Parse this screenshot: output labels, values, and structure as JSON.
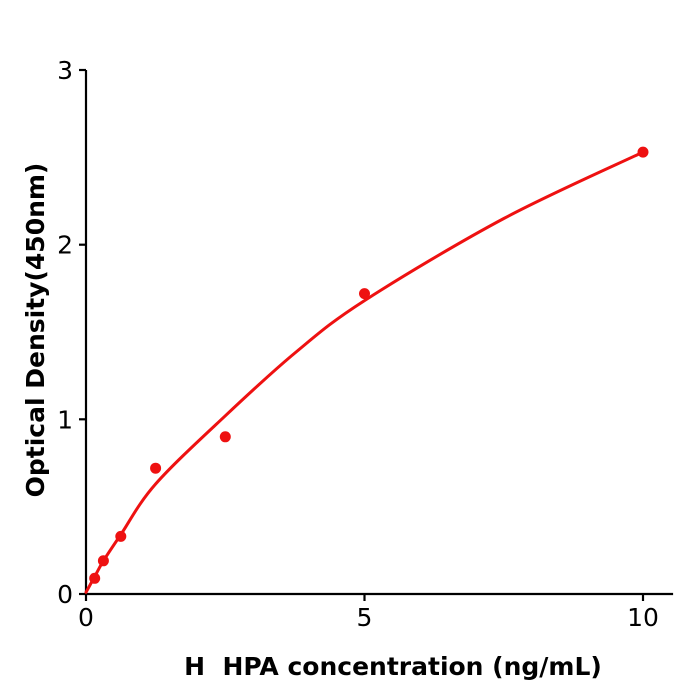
{
  "chart_data": {
    "type": "scatter",
    "title": "",
    "xlabel": "H  HPA concentration (ng/mL)",
    "ylabel": "Optical Density(450nm)",
    "xlim": [
      0,
      10.54
    ],
    "ylim": [
      0,
      3
    ],
    "xticks": [
      "0",
      "5",
      "10"
    ],
    "xtick_values": [
      0,
      5,
      10
    ],
    "yticks": [
      "0",
      "1",
      "2",
      "3"
    ],
    "ytick_values": [
      0,
      1,
      2,
      3
    ],
    "grid": false,
    "legend_position": "none",
    "series": [
      {
        "name": "standard-data-points",
        "type": "scatter",
        "color": "#ee1111",
        "x": [
          0.156,
          0.312,
          0.625,
          1.25,
          2.5,
          5,
          10
        ],
        "y": [
          0.09,
          0.19,
          0.33,
          0.72,
          0.9,
          1.72,
          2.53
        ]
      },
      {
        "name": "fitted-curve",
        "type": "line",
        "color": "#ee1111",
        "x": [
          0,
          0.156,
          0.312,
          0.625,
          1.25,
          2.5,
          3.75,
          5,
          7.5,
          10
        ],
        "y": [
          0.01,
          0.1,
          0.19,
          0.34,
          0.63,
          1.02,
          1.38,
          1.68,
          2.15,
          2.53
        ]
      }
    ],
    "colors": {
      "accent": "#ee1111",
      "axis": "#000000",
      "background": "#ffffff"
    }
  }
}
